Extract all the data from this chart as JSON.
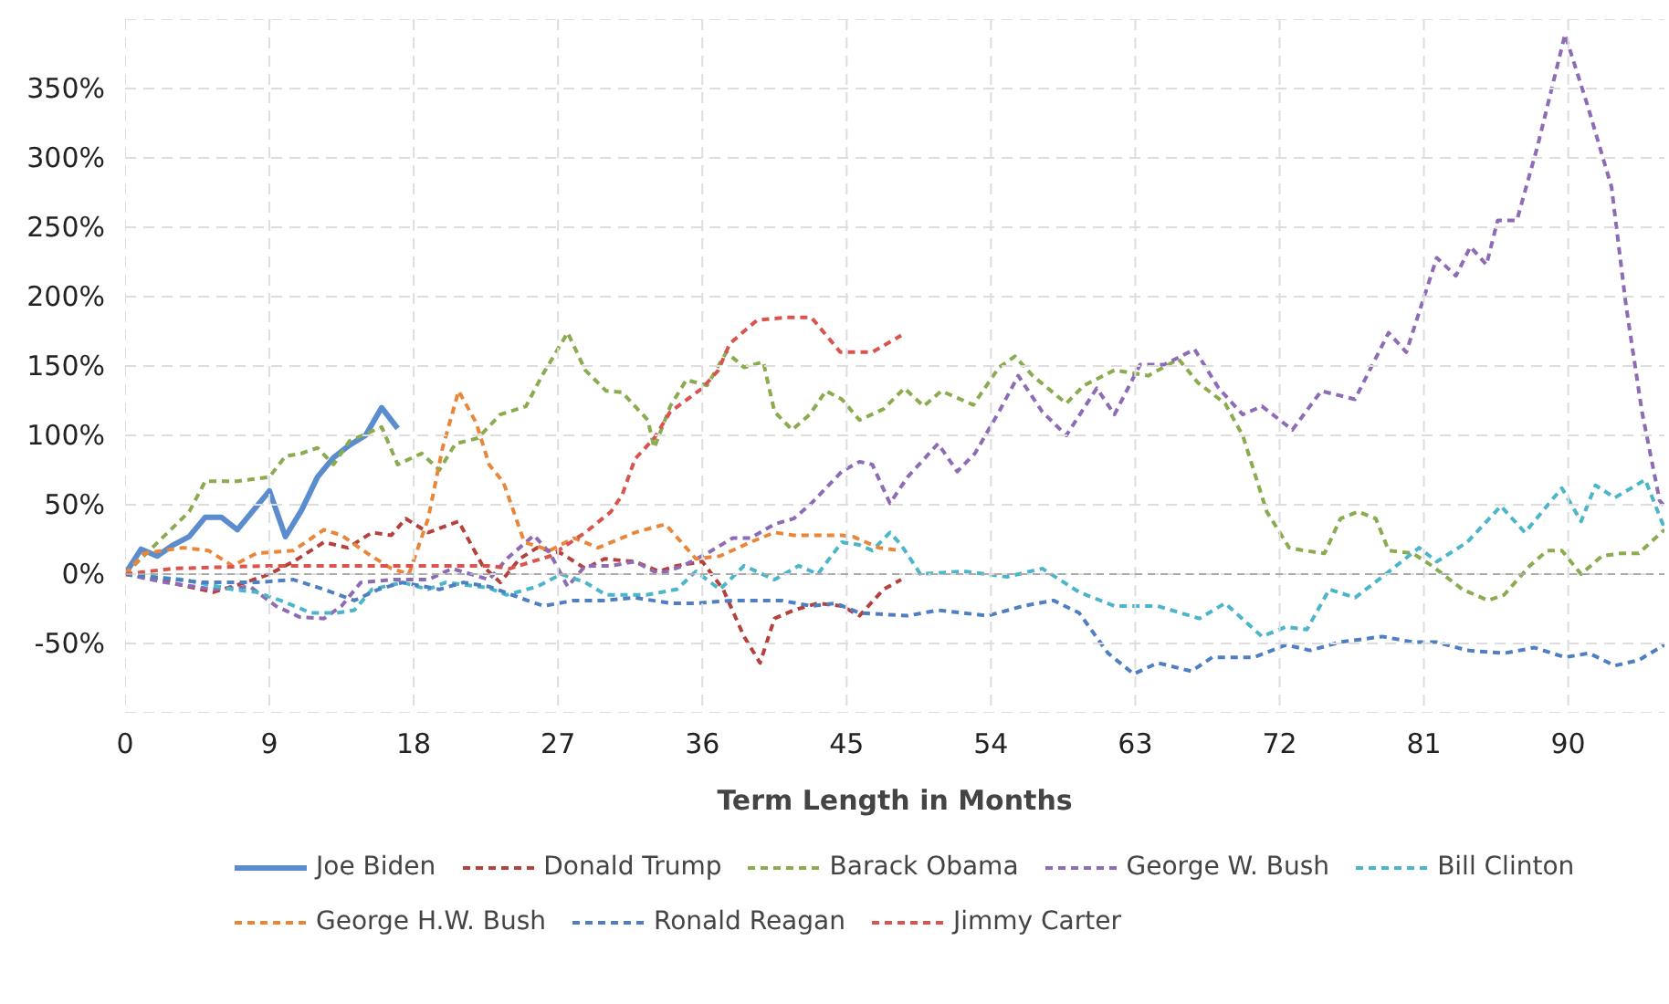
{
  "chart_data": {
    "type": "line",
    "xlabel": "Term Length in Months",
    "xlim": [
      0,
      96
    ],
    "xticks": [
      0,
      9,
      18,
      27,
      36,
      45,
      54,
      63,
      72,
      81,
      90
    ],
    "ylim": [
      -100,
      400
    ],
    "yticks": [
      {
        "value": -100,
        "label": null
      },
      {
        "value": -50,
        "label": "-50%"
      },
      {
        "value": 0,
        "label": "0%"
      },
      {
        "value": 50,
        "label": "50%"
      },
      {
        "value": 100,
        "label": "100%"
      },
      {
        "value": 150,
        "label": "150%"
      },
      {
        "value": 200,
        "label": "200%"
      },
      {
        "value": 250,
        "label": "250%"
      },
      {
        "value": 300,
        "label": "300%"
      },
      {
        "value": 350,
        "label": "350%"
      },
      {
        "value": 400,
        "label": null
      }
    ],
    "grid": true,
    "legend": "bottom",
    "ref_lines": [
      {
        "axis": "y",
        "value": 0,
        "color": "#aaaaaa",
        "line_style": "dashed"
      }
    ],
    "series": [
      {
        "name": "Joe Biden",
        "color": "#5b8ccf",
        "line_style": "solid",
        "x": [
          0,
          1,
          2,
          3,
          4,
          5,
          6,
          7,
          8,
          9,
          10,
          11,
          12,
          13,
          14,
          15,
          16,
          17
        ],
        "values": [
          0,
          18,
          13,
          21,
          27,
          41,
          41,
          32,
          46,
          60,
          27,
          46,
          70,
          84,
          93,
          100,
          120,
          105
        ]
      },
      {
        "name": "Donald Trump",
        "color": "#b5413c",
        "line_style": "dashed",
        "x": [
          0,
          2,
          5.5,
          7.5,
          9,
          10.5,
          12.4,
          13.9,
          15.4,
          16.6,
          17.5,
          18.9,
          20.8,
          22.3,
          23.4,
          24.6,
          25.7,
          27.2,
          28.7,
          29.9,
          31.8,
          33.3,
          34.4,
          36,
          37.3,
          38.6,
          39.6,
          40.5,
          41.7,
          43.2,
          44.7,
          45.8,
          47.3,
          48.4
        ],
        "values": [
          0,
          -4,
          -13,
          -6,
          0,
          9,
          23,
          19,
          30,
          28,
          40,
          30,
          38,
          6,
          -6,
          11,
          19,
          15,
          4,
          11,
          9,
          2,
          6,
          9,
          -11,
          -45,
          -64,
          -32,
          -26,
          -21,
          -23,
          -30,
          -11,
          -4
        ]
      },
      {
        "name": "Barack Obama",
        "color": "#8aab4e",
        "line_style": "dashed",
        "x": [
          0,
          4,
          5,
          7,
          9,
          10,
          11,
          12,
          13,
          14,
          16,
          17,
          18.5,
          19.6,
          20.6,
          22,
          23.4,
          25,
          26,
          27.6,
          28.7,
          30,
          31,
          32.6,
          33,
          34,
          35,
          36.3,
          37.5,
          38.6,
          39.8,
          40.5,
          41.6,
          42.7,
          43.7,
          44.7,
          45.8,
          47.3,
          48.6,
          49.8,
          50.9,
          52.9,
          54.5,
          55.5,
          56.6,
          58.7,
          59.8,
          61.7,
          63.8,
          65.7,
          66.9,
          68.6,
          69.7,
          71.2,
          72.6,
          73.5,
          74.8,
          75.8,
          76.9,
          78,
          78.8,
          80.3,
          81.5,
          83.4,
          85,
          86,
          87.6,
          88.7,
          89.6,
          90.8,
          92.1,
          93.3,
          94.4,
          96
        ],
        "values": [
          0,
          45,
          67,
          67,
          70,
          85,
          87,
          91,
          79,
          96,
          106,
          79,
          87,
          75,
          94,
          98,
          115,
          121,
          143,
          174,
          147,
          132,
          131,
          111,
          91,
          121,
          140,
          136,
          160,
          149,
          153,
          117,
          104,
          115,
          132,
          126,
          111,
          119,
          134,
          121,
          132,
          122,
          149,
          157,
          143,
          123,
          136,
          147,
          143,
          155,
          138,
          123,
          100,
          45,
          19,
          17,
          15,
          40,
          45,
          40,
          17,
          15,
          6,
          -11,
          -19,
          -15,
          6,
          17,
          17,
          0,
          13,
          15,
          15,
          32
        ]
      },
      {
        "name": "George W. Bush",
        "color": "#8e6bb5",
        "line_style": "dashed",
        "x": [
          0,
          2.5,
          5.5,
          7.8,
          9.4,
          10.9,
          12.4,
          13.5,
          14.7,
          16.6,
          18.9,
          20.4,
          22.7,
          23.8,
          25.5,
          26.5,
          27.6,
          28.7,
          30.3,
          31.8,
          33.3,
          34.8,
          36.3,
          37.9,
          39,
          40.5,
          41.7,
          42.8,
          44.7,
          45.8,
          46.6,
          47.7,
          48.8,
          50.7,
          51.9,
          53,
          54.5,
          55.7,
          57.2,
          58.7,
          60.6,
          61.7,
          63.3,
          64.8,
          66.7,
          68.2,
          69.7,
          70.9,
          72.8,
          74.6,
          76.7,
          78.8,
          79.9,
          81.8,
          83,
          83.9,
          84.9,
          85.6,
          86.8,
          88.1,
          89.8,
          91.2,
          92.7,
          93.6,
          94.6,
          95.7,
          96
        ],
        "values": [
          0,
          -6,
          -11,
          -9,
          -23,
          -31,
          -32,
          -23,
          -6,
          -4,
          -4,
          4,
          -4,
          11,
          28,
          15,
          -9,
          6,
          6,
          9,
          0,
          6,
          15,
          26,
          26,
          36,
          40,
          51,
          74,
          81,
          79,
          51,
          70,
          94,
          74,
          87,
          117,
          143,
          117,
          100,
          134,
          115,
          151,
          151,
          162,
          134,
          115,
          121,
          104,
          132,
          126,
          174,
          160,
          228,
          215,
          236,
          223,
          255,
          255,
          309,
          389,
          338,
          279,
          194,
          117,
          53,
          49
        ]
      },
      {
        "name": "Bill Clinton",
        "color": "#4bb5c9",
        "line_style": "dashed",
        "x": [
          0,
          3.6,
          6.7,
          8.2,
          9.7,
          11.6,
          13.2,
          14.3,
          15.4,
          17.3,
          18.9,
          20,
          22.7,
          23.8,
          25.7,
          27.2,
          28.7,
          30,
          32.5,
          34.4,
          35.6,
          37.1,
          38.6,
          40.5,
          42,
          43.2,
          44.7,
          45.8,
          46.6,
          47.7,
          48.4,
          49.6,
          52.3,
          55,
          57.2,
          59.5,
          61.7,
          64.4,
          67,
          68.6,
          70.9,
          72.4,
          73.7,
          75.1,
          76.7,
          78.4,
          80.7,
          81.8,
          83.7,
          85.8,
          87.3,
          89.6,
          90.8,
          91.7,
          92.9,
          94.8,
          95.9,
          96
        ],
        "values": [
          0,
          -4,
          -11,
          -13,
          -19,
          -28,
          -28,
          -26,
          -11,
          -6,
          -11,
          -6,
          -10,
          -15,
          -9,
          0,
          -6,
          -15,
          -15,
          -11,
          2,
          -11,
          6,
          -4,
          6,
          0,
          23,
          21,
          17,
          30,
          21,
          0,
          2,
          -2,
          4,
          -13,
          -23,
          -23,
          -32,
          -21,
          -45,
          -38,
          -40,
          -11,
          -17,
          -2,
          19,
          9,
          23,
          49,
          30,
          62,
          38,
          64,
          55,
          68,
          36,
          38
        ]
      },
      {
        "name": "George H.W. Bush",
        "color": "#e8873a",
        "line_style": "dashed",
        "x": [
          0,
          1.2,
          3.6,
          5.2,
          6.7,
          8.2,
          10.5,
          12.4,
          13.5,
          15.1,
          16.6,
          17.7,
          18.9,
          19.8,
          20.8,
          21.9,
          22.7,
          23.6,
          24.9,
          26.5,
          28,
          29.5,
          31.8,
          33.7,
          35.6,
          37.1,
          39,
          40.5,
          41.7,
          44.7,
          45.4,
          47,
          48.4
        ],
        "values": [
          0,
          15,
          19,
          17,
          6,
          15,
          17,
          32,
          28,
          15,
          4,
          0,
          40,
          91,
          132,
          109,
          79,
          66,
          23,
          17,
          26,
          19,
          30,
          36,
          11,
          13,
          23,
          30,
          28,
          28,
          27,
          19,
          17
        ]
      },
      {
        "name": "Ronald Reagan",
        "color": "#4f7fc0",
        "line_style": "dashed",
        "x": [
          0,
          4.8,
          8.2,
          10.5,
          12.4,
          14.3,
          15.8,
          17.3,
          19.6,
          21.1,
          22.7,
          24.6,
          26.1,
          28,
          29.9,
          31.8,
          34,
          35.6,
          37.9,
          40.9,
          42.8,
          44.3,
          45.8,
          48.8,
          50.7,
          53.8,
          56,
          57.9,
          59.5,
          61.3,
          62.9,
          64.4,
          66.5,
          67.8,
          70.4,
          72.4,
          73.9,
          75.8,
          78.4,
          80.3,
          81.8,
          83.7,
          86,
          87.9,
          89.8,
          91.3,
          92.9,
          94.4,
          96
        ],
        "values": [
          0,
          -6,
          -6,
          -4,
          -11,
          -19,
          -11,
          -6,
          -11,
          -6,
          -9,
          -17,
          -23,
          -19,
          -19,
          -17,
          -21,
          -21,
          -19,
          -19,
          -23,
          -21,
          -28,
          -30,
          -26,
          -30,
          -23,
          -19,
          -28,
          -57,
          -72,
          -64,
          -70,
          -60,
          -60,
          -51,
          -55,
          -49,
          -45,
          -49,
          -49,
          -55,
          -57,
          -53,
          -60,
          -57,
          -66,
          -62,
          -51
        ]
      },
      {
        "name": "Jimmy Carter",
        "color": "#d9534f",
        "line_style": "dashed",
        "x": [
          0,
          3,
          9,
          22.7,
          24,
          26.5,
          28.7,
          30.3,
          31,
          31.8,
          33,
          34,
          36,
          37,
          37.7,
          39.4,
          41.3,
          42.8,
          44.6,
          46.6,
          48.4
        ],
        "values": [
          0,
          4,
          6,
          6,
          4,
          13,
          30,
          45,
          57,
          83,
          98,
          117,
          134,
          147,
          166,
          183,
          185,
          185,
          160,
          160,
          172
        ]
      }
    ]
  }
}
